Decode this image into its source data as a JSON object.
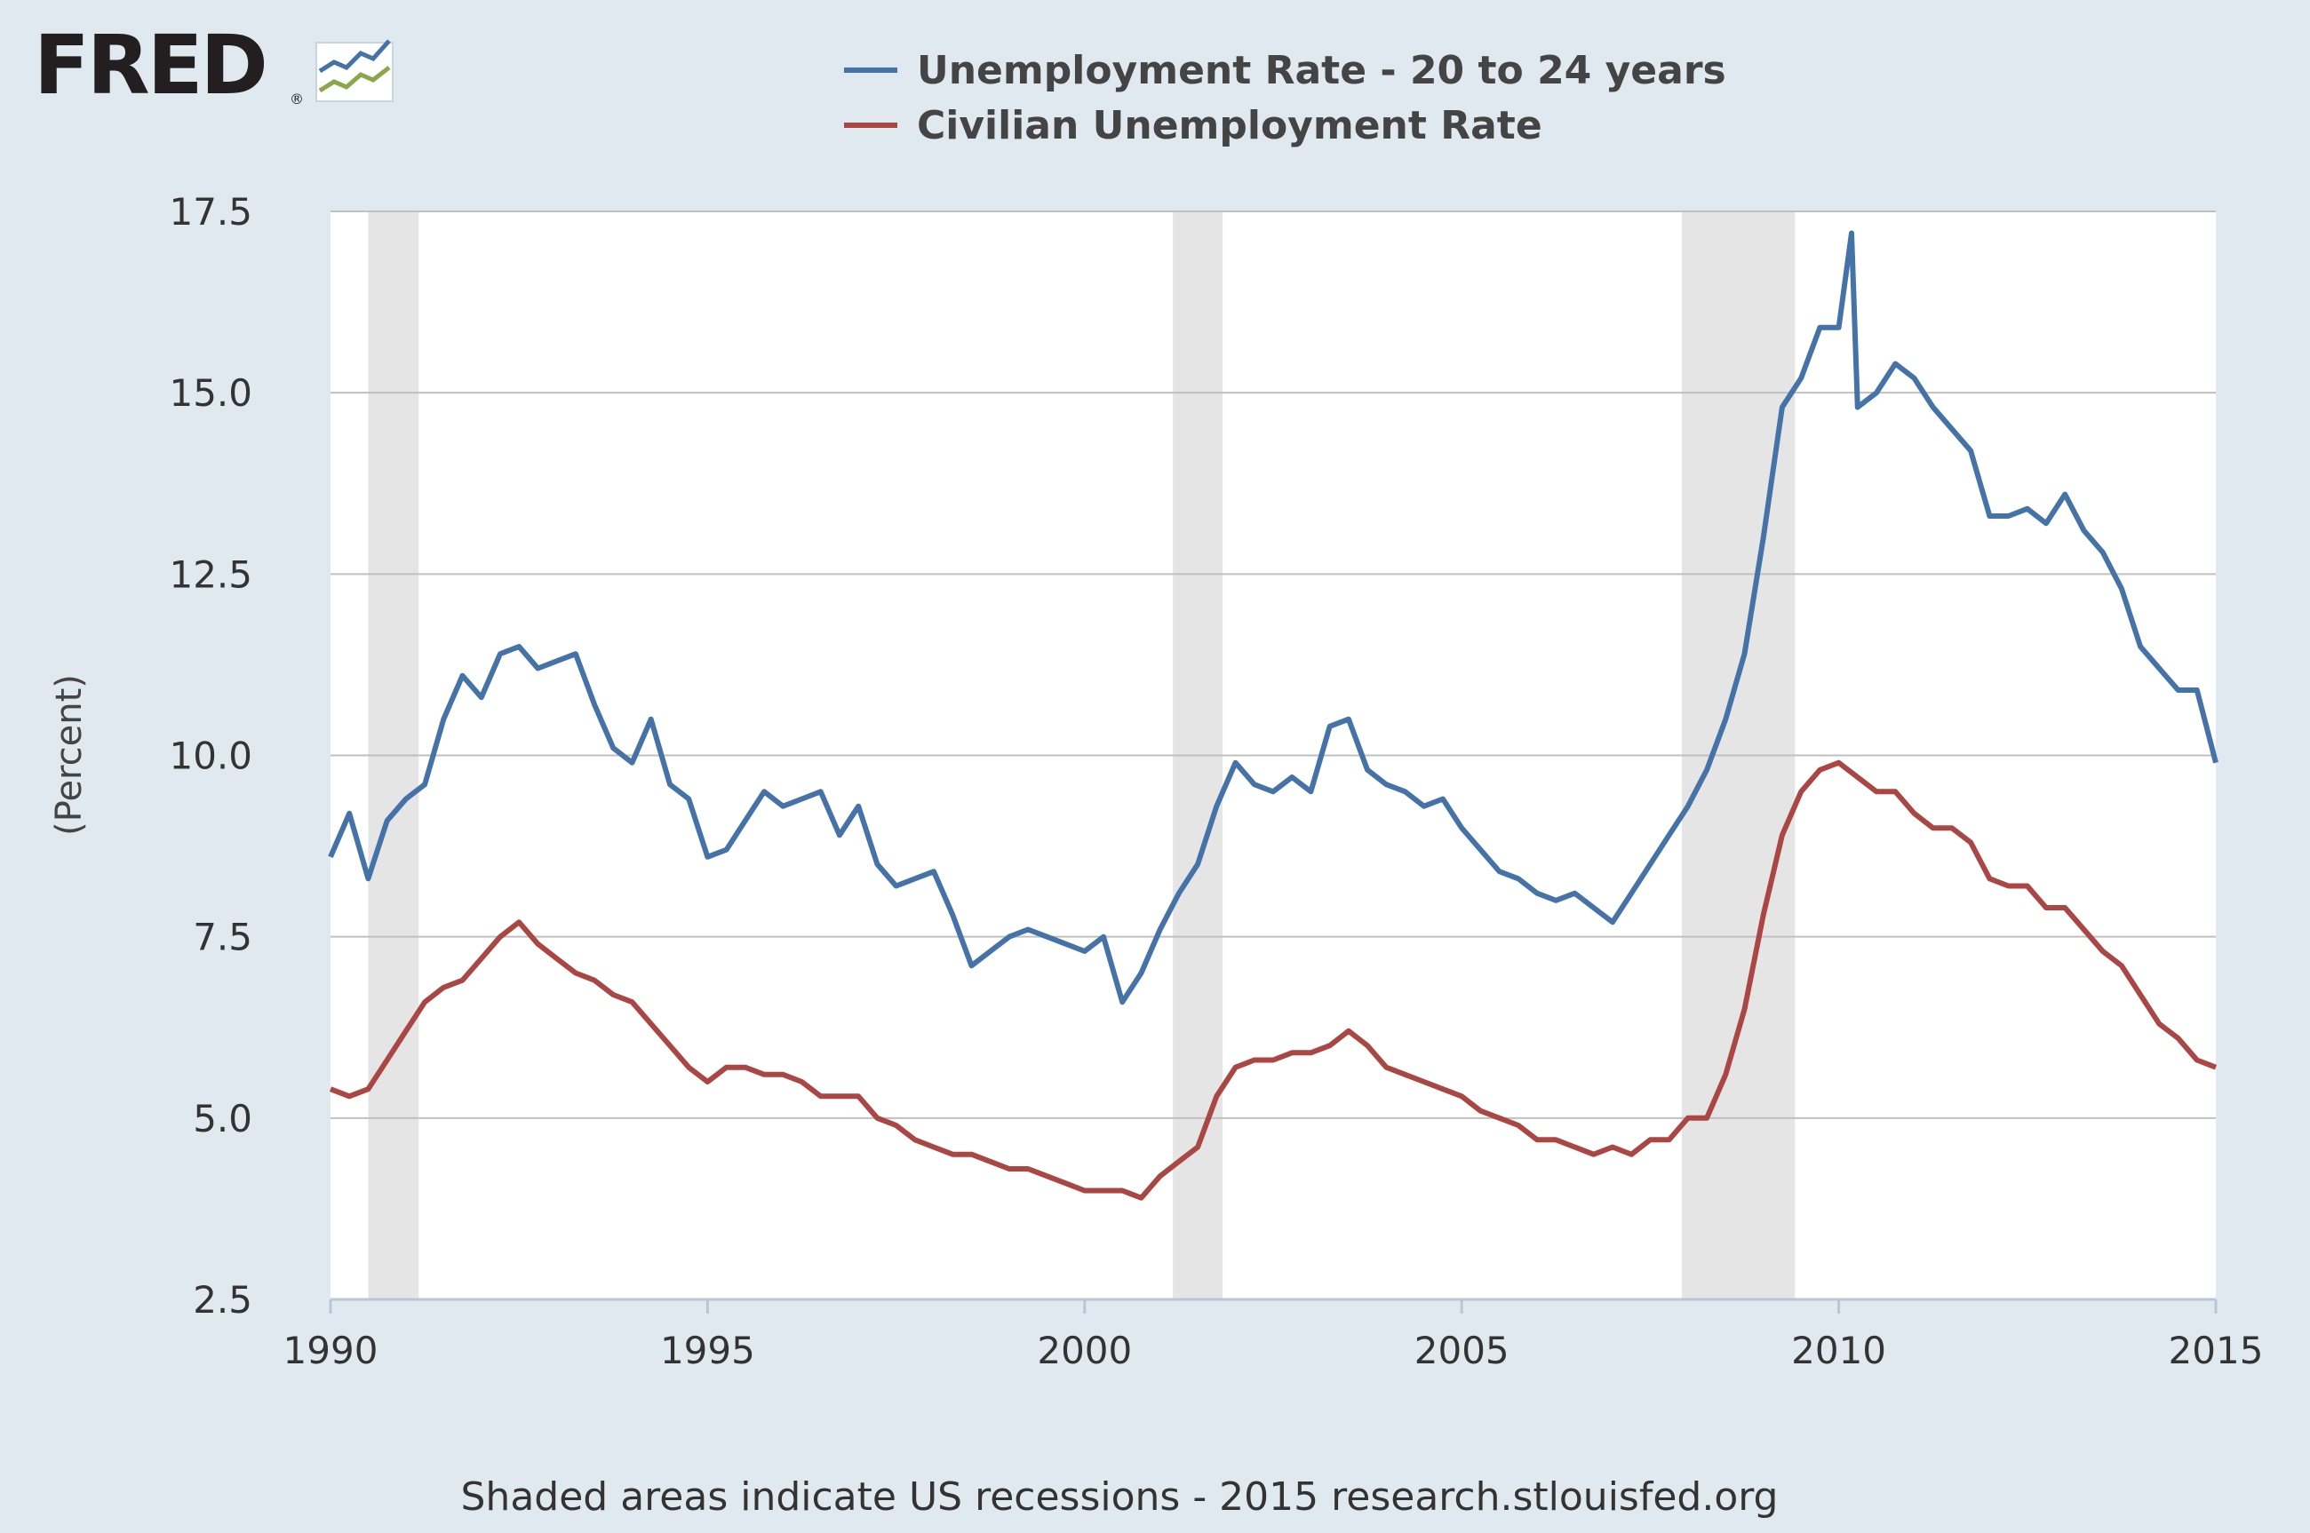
{
  "logo": {
    "text": "FRED",
    "reg": "®"
  },
  "legend": [
    {
      "label": "Unemployment Rate - 20 to 24 years",
      "color": "#4572a7"
    },
    {
      "label": "Civilian Unemployment Rate",
      "color": "#aa4643"
    }
  ],
  "footer": "Shaded areas indicate US recessions - 2015 research.stlouisfed.org",
  "chart_data": {
    "type": "line",
    "ylabel": "(Percent)",
    "xlim": [
      1990,
      2015
    ],
    "ylim": [
      2.5,
      17.5
    ],
    "x_ticks": [
      {
        "value": 1990,
        "label": "1990"
      },
      {
        "value": 1995,
        "label": "1995"
      },
      {
        "value": 2000,
        "label": "2000"
      },
      {
        "value": 2005,
        "label": "2005"
      },
      {
        "value": 2010,
        "label": "2010"
      },
      {
        "value": 2015,
        "label": "2015"
      }
    ],
    "y_ticks": [
      {
        "value": 2.5,
        "label": "2.5"
      },
      {
        "value": 5,
        "label": "5.0"
      },
      {
        "value": 7.5,
        "label": "7.5"
      },
      {
        "value": 10,
        "label": "10.0"
      },
      {
        "value": 12.5,
        "label": "12.5"
      },
      {
        "value": 15,
        "label": "15.0"
      },
      {
        "value": 17.5,
        "label": "17.5"
      }
    ],
    "grid": "horizontal",
    "recessions": [
      {
        "start": 1990.5,
        "end": 1991.17
      },
      {
        "start": 2001.17,
        "end": 2001.83
      },
      {
        "start": 2007.92,
        "end": 2009.42
      }
    ],
    "series": [
      {
        "name": "Unemployment Rate - 20 to 24 years",
        "color": "#4572a7",
        "points": [
          [
            1990.0,
            8.6
          ],
          [
            1990.25,
            9.2
          ],
          [
            1990.5,
            8.3
          ],
          [
            1990.75,
            9.1
          ],
          [
            1991.0,
            9.4
          ],
          [
            1991.25,
            9.6
          ],
          [
            1991.5,
            10.5
          ],
          [
            1991.75,
            11.1
          ],
          [
            1992.0,
            10.8
          ],
          [
            1992.25,
            11.4
          ],
          [
            1992.5,
            11.5
          ],
          [
            1992.75,
            11.2
          ],
          [
            1993.0,
            11.3
          ],
          [
            1993.25,
            11.4
          ],
          [
            1993.5,
            10.7
          ],
          [
            1993.75,
            10.1
          ],
          [
            1994.0,
            9.9
          ],
          [
            1994.25,
            10.5
          ],
          [
            1994.5,
            9.6
          ],
          [
            1994.75,
            9.4
          ],
          [
            1995.0,
            8.6
          ],
          [
            1995.25,
            8.7
          ],
          [
            1995.5,
            9.1
          ],
          [
            1995.75,
            9.5
          ],
          [
            1996.0,
            9.3
          ],
          [
            1996.25,
            9.4
          ],
          [
            1996.5,
            9.5
          ],
          [
            1996.75,
            8.9
          ],
          [
            1997.0,
            9.3
          ],
          [
            1997.25,
            8.5
          ],
          [
            1997.5,
            8.2
          ],
          [
            1997.75,
            8.3
          ],
          [
            1998.0,
            8.4
          ],
          [
            1998.25,
            7.8
          ],
          [
            1998.5,
            7.1
          ],
          [
            1998.75,
            7.3
          ],
          [
            1999.0,
            7.5
          ],
          [
            1999.25,
            7.6
          ],
          [
            1999.5,
            7.5
          ],
          [
            1999.75,
            7.4
          ],
          [
            2000.0,
            7.3
          ],
          [
            2000.25,
            7.5
          ],
          [
            2000.5,
            6.6
          ],
          [
            2000.75,
            7.0
          ],
          [
            2001.0,
            7.6
          ],
          [
            2001.25,
            8.1
          ],
          [
            2001.5,
            8.5
          ],
          [
            2001.75,
            9.3
          ],
          [
            2002.0,
            9.9
          ],
          [
            2002.25,
            9.6
          ],
          [
            2002.5,
            9.5
          ],
          [
            2002.75,
            9.7
          ],
          [
            2003.0,
            9.5
          ],
          [
            2003.25,
            10.4
          ],
          [
            2003.5,
            10.5
          ],
          [
            2003.75,
            9.8
          ],
          [
            2004.0,
            9.6
          ],
          [
            2004.25,
            9.5
          ],
          [
            2004.5,
            9.3
          ],
          [
            2004.75,
            9.4
          ],
          [
            2005.0,
            9.0
          ],
          [
            2005.25,
            8.7
          ],
          [
            2005.5,
            8.4
          ],
          [
            2005.75,
            8.3
          ],
          [
            2006.0,
            8.1
          ],
          [
            2006.25,
            8.0
          ],
          [
            2006.5,
            8.1
          ],
          [
            2006.75,
            7.9
          ],
          [
            2007.0,
            7.7
          ],
          [
            2007.25,
            8.1
          ],
          [
            2007.5,
            8.5
          ],
          [
            2007.75,
            8.9
          ],
          [
            2008.0,
            9.3
          ],
          [
            2008.25,
            9.8
          ],
          [
            2008.5,
            10.5
          ],
          [
            2008.75,
            11.4
          ],
          [
            2009.0,
            13.0
          ],
          [
            2009.25,
            14.8
          ],
          [
            2009.5,
            15.2
          ],
          [
            2009.75,
            15.9
          ],
          [
            2010.0,
            15.9
          ],
          [
            2010.17,
            17.2
          ],
          [
            2010.25,
            14.8
          ],
          [
            2010.5,
            15.0
          ],
          [
            2010.75,
            15.4
          ],
          [
            2011.0,
            15.2
          ],
          [
            2011.25,
            14.8
          ],
          [
            2011.5,
            14.5
          ],
          [
            2011.75,
            14.2
          ],
          [
            2012.0,
            13.3
          ],
          [
            2012.25,
            13.3
          ],
          [
            2012.5,
            13.4
          ],
          [
            2012.75,
            13.2
          ],
          [
            2013.0,
            13.6
          ],
          [
            2013.25,
            13.1
          ],
          [
            2013.5,
            12.8
          ],
          [
            2013.75,
            12.3
          ],
          [
            2014.0,
            11.5
          ],
          [
            2014.25,
            11.2
          ],
          [
            2014.5,
            10.9
          ],
          [
            2014.75,
            10.9
          ],
          [
            2015.0,
            9.9
          ]
        ]
      },
      {
        "name": "Civilian Unemployment Rate",
        "color": "#aa4643",
        "points": [
          [
            1990.0,
            5.4
          ],
          [
            1990.25,
            5.3
          ],
          [
            1990.5,
            5.4
          ],
          [
            1990.75,
            5.8
          ],
          [
            1991.0,
            6.2
          ],
          [
            1991.25,
            6.6
          ],
          [
            1991.5,
            6.8
          ],
          [
            1991.75,
            6.9
          ],
          [
            1992.0,
            7.2
          ],
          [
            1992.25,
            7.5
          ],
          [
            1992.5,
            7.7
          ],
          [
            1992.75,
            7.4
          ],
          [
            1993.0,
            7.2
          ],
          [
            1993.25,
            7.0
          ],
          [
            1993.5,
            6.9
          ],
          [
            1993.75,
            6.7
          ],
          [
            1994.0,
            6.6
          ],
          [
            1994.25,
            6.3
          ],
          [
            1994.5,
            6.0
          ],
          [
            1994.75,
            5.7
          ],
          [
            1995.0,
            5.5
          ],
          [
            1995.25,
            5.7
          ],
          [
            1995.5,
            5.7
          ],
          [
            1995.75,
            5.6
          ],
          [
            1996.0,
            5.6
          ],
          [
            1996.25,
            5.5
          ],
          [
            1996.5,
            5.3
          ],
          [
            1996.75,
            5.3
          ],
          [
            1997.0,
            5.3
          ],
          [
            1997.25,
            5.0
          ],
          [
            1997.5,
            4.9
          ],
          [
            1997.75,
            4.7
          ],
          [
            1998.0,
            4.6
          ],
          [
            1998.25,
            4.5
          ],
          [
            1998.5,
            4.5
          ],
          [
            1998.75,
            4.4
          ],
          [
            1999.0,
            4.3
          ],
          [
            1999.25,
            4.3
          ],
          [
            1999.5,
            4.2
          ],
          [
            1999.75,
            4.1
          ],
          [
            2000.0,
            4.0
          ],
          [
            2000.25,
            4.0
          ],
          [
            2000.5,
            4.0
          ],
          [
            2000.75,
            3.9
          ],
          [
            2001.0,
            4.2
          ],
          [
            2001.25,
            4.4
          ],
          [
            2001.5,
            4.6
          ],
          [
            2001.75,
            5.3
          ],
          [
            2002.0,
            5.7
          ],
          [
            2002.25,
            5.8
          ],
          [
            2002.5,
            5.8
          ],
          [
            2002.75,
            5.9
          ],
          [
            2003.0,
            5.9
          ],
          [
            2003.25,
            6.0
          ],
          [
            2003.5,
            6.2
          ],
          [
            2003.75,
            6.0
          ],
          [
            2004.0,
            5.7
          ],
          [
            2004.25,
            5.6
          ],
          [
            2004.5,
            5.5
          ],
          [
            2004.75,
            5.4
          ],
          [
            2005.0,
            5.3
          ],
          [
            2005.25,
            5.1
          ],
          [
            2005.5,
            5.0
          ],
          [
            2005.75,
            4.9
          ],
          [
            2006.0,
            4.7
          ],
          [
            2006.25,
            4.7
          ],
          [
            2006.5,
            4.6
          ],
          [
            2006.75,
            4.5
          ],
          [
            2007.0,
            4.6
          ],
          [
            2007.25,
            4.5
          ],
          [
            2007.5,
            4.7
          ],
          [
            2007.75,
            4.7
          ],
          [
            2008.0,
            5.0
          ],
          [
            2008.25,
            5.0
          ],
          [
            2008.5,
            5.6
          ],
          [
            2008.75,
            6.5
          ],
          [
            2009.0,
            7.8
          ],
          [
            2009.25,
            8.9
          ],
          [
            2009.5,
            9.5
          ],
          [
            2009.75,
            9.8
          ],
          [
            2010.0,
            9.9
          ],
          [
            2010.25,
            9.7
          ],
          [
            2010.5,
            9.5
          ],
          [
            2010.75,
            9.5
          ],
          [
            2011.0,
            9.2
          ],
          [
            2011.25,
            9.0
          ],
          [
            2011.5,
            9.0
          ],
          [
            2011.75,
            8.8
          ],
          [
            2012.0,
            8.3
          ],
          [
            2012.25,
            8.2
          ],
          [
            2012.5,
            8.2
          ],
          [
            2012.75,
            7.9
          ],
          [
            2013.0,
            7.9
          ],
          [
            2013.25,
            7.6
          ],
          [
            2013.5,
            7.3
          ],
          [
            2013.75,
            7.1
          ],
          [
            2014.0,
            6.7
          ],
          [
            2014.25,
            6.3
          ],
          [
            2014.5,
            6.1
          ],
          [
            2014.75,
            5.8
          ],
          [
            2015.0,
            5.7
          ]
        ]
      }
    ]
  }
}
